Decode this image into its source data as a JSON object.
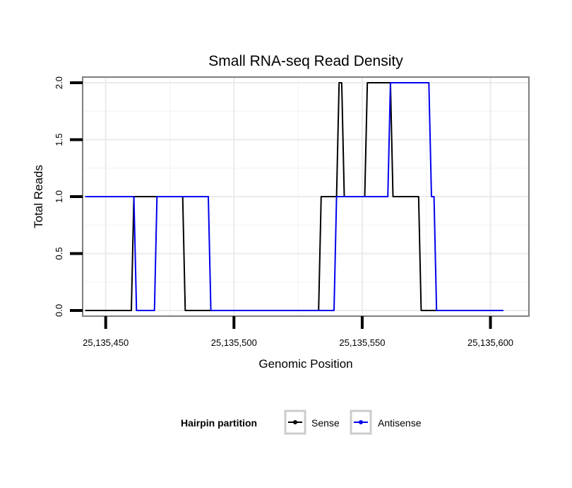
{
  "chart_data": {
    "type": "line",
    "title": "Small RNA-seq Read Density",
    "xlabel": "Genomic Position",
    "ylabel": "Total Reads",
    "xlim": [
      25135441,
      25135615
    ],
    "ylim": [
      -0.05,
      2.05
    ],
    "x_ticks": [
      25135450,
      25135500,
      25135550,
      25135600
    ],
    "x_tick_labels": [
      "25,135,450",
      "25,135,500",
      "25,135,550",
      "25,135,600"
    ],
    "y_ticks": [
      0.0,
      0.5,
      1.0,
      1.5,
      2.0
    ],
    "y_tick_labels": [
      "0.0",
      "0.5",
      "1.0",
      "1.5",
      "2.0"
    ],
    "grid": true,
    "legend": {
      "title": "Hairpin partition",
      "position": "bottom",
      "entries": [
        "Sense",
        "Antisense"
      ]
    },
    "series": [
      {
        "name": "Sense",
        "color": "#000000",
        "x": [
          25135442,
          25135460,
          25135461,
          25135469,
          25135470,
          25135480,
          25135481,
          25135533,
          25135534,
          25135540,
          25135541,
          25135542,
          25135543,
          25135551,
          25135552,
          25135561,
          25135562,
          25135572,
          25135573,
          25135583,
          25135584,
          25135605
        ],
        "y": [
          0,
          0,
          1,
          1,
          1,
          1,
          0,
          0,
          1,
          1,
          2,
          2,
          1,
          1,
          2,
          2,
          1,
          1,
          0,
          0,
          0,
          0
        ]
      },
      {
        "name": "Antisense",
        "color": "#0000ee",
        "x": [
          25135442,
          25135461,
          25135462,
          25135469,
          25135470,
          25135490,
          25135491,
          25135539,
          25135540,
          25135560,
          25135561,
          25135576,
          25135577,
          25135578,
          25135579,
          25135605
        ],
        "y": [
          1,
          1,
          0,
          0,
          1,
          1,
          0,
          0,
          1,
          1,
          2,
          2,
          1,
          1,
          0,
          0
        ]
      }
    ]
  }
}
